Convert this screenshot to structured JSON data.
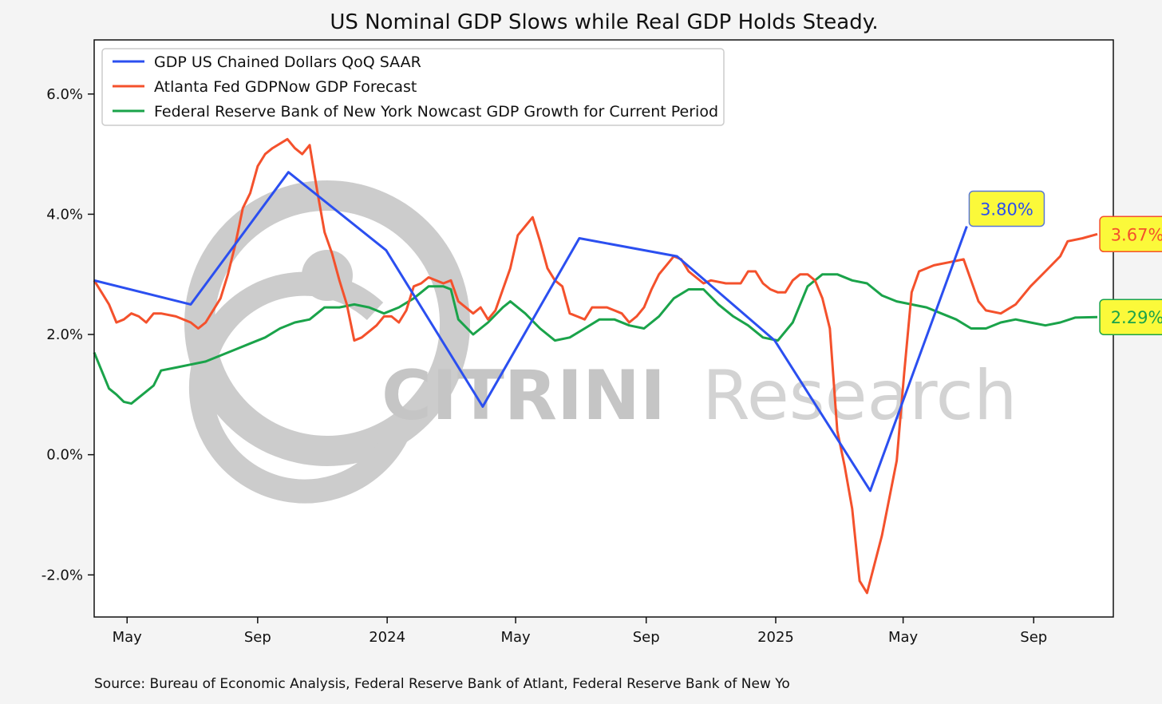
{
  "chart_data": {
    "type": "line",
    "title": "US Nominal GDP Slows while Real GDP Holds Steady.",
    "xlabel": "",
    "ylabel": "",
    "x_unit": "date",
    "xlim": [
      "2023-03-31",
      "2025-11-15"
    ],
    "ylim": [
      -2.7,
      6.9
    ],
    "y_ticks": [
      -2,
      0,
      2,
      4,
      6
    ],
    "y_tick_labels": [
      "-2.0%",
      "0.0%",
      "2.0%",
      "4.0%",
      "6.0%"
    ],
    "x_ticks": [
      "2023-05-01",
      "2023-09-01",
      "2024-01-01",
      "2024-05-01",
      "2024-09-01",
      "2025-01-01",
      "2025-05-01",
      "2025-09-01"
    ],
    "x_tick_labels": [
      "May",
      "Sep",
      "2024",
      "May",
      "Sep",
      "2025",
      "May",
      "Sep"
    ],
    "grid": false,
    "legend_position": "top-left",
    "source": "Source: Bureau of Economic Analysis, Federal Reserve Bank of Atlant, Federal Reserve Bank of New Yo",
    "watermark": {
      "brand": "CITRINI",
      "sub": "Research"
    },
    "series": [
      {
        "name": "GDP US Chained Dollars QoQ SAAR",
        "color": "#2b4ff0",
        "end_label": "3.80%",
        "end_label_color": "#2b4ff0",
        "end_label_border": "#5a78d6",
        "points": [
          [
            "2023-03-31",
            2.9
          ],
          [
            "2023-06-30",
            2.5
          ],
          [
            "2023-09-30",
            4.7
          ],
          [
            "2023-12-31",
            3.4
          ],
          [
            "2024-03-31",
            0.8
          ],
          [
            "2024-06-30",
            3.6
          ],
          [
            "2024-09-30",
            3.3
          ],
          [
            "2024-12-31",
            1.9
          ],
          [
            "2025-03-31",
            -0.6
          ],
          [
            "2025-06-30",
            3.8
          ]
        ]
      },
      {
        "name": "Atlanta Fed GDPNow GDP Forecast",
        "color": "#f4512c",
        "end_label": "3.67%",
        "end_label_color": "#f4512c",
        "end_label_border": "#f4512c",
        "points": [
          [
            "2023-03-31",
            2.9
          ],
          [
            "2023-04-07",
            2.7
          ],
          [
            "2023-04-14",
            2.5
          ],
          [
            "2023-04-21",
            2.2
          ],
          [
            "2023-04-28",
            2.25
          ],
          [
            "2023-05-05",
            2.35
          ],
          [
            "2023-05-12",
            2.3
          ],
          [
            "2023-05-19",
            2.2
          ],
          [
            "2023-05-26",
            2.35
          ],
          [
            "2023-06-02",
            2.35
          ],
          [
            "2023-06-16",
            2.3
          ],
          [
            "2023-06-30",
            2.2
          ],
          [
            "2023-07-07",
            2.1
          ],
          [
            "2023-07-14",
            2.2
          ],
          [
            "2023-07-28",
            2.6
          ],
          [
            "2023-08-04",
            3.0
          ],
          [
            "2023-08-11",
            3.5
          ],
          [
            "2023-08-18",
            4.1
          ],
          [
            "2023-08-25",
            4.35
          ],
          [
            "2023-09-01",
            4.8
          ],
          [
            "2023-09-08",
            5.0
          ],
          [
            "2023-09-15",
            5.1
          ],
          [
            "2023-09-29",
            5.25
          ],
          [
            "2023-10-06",
            5.1
          ],
          [
            "2023-10-13",
            5.0
          ],
          [
            "2023-10-20",
            5.15
          ],
          [
            "2023-10-27",
            4.4
          ],
          [
            "2023-11-03",
            3.7
          ],
          [
            "2023-11-10",
            3.35
          ],
          [
            "2023-11-17",
            2.9
          ],
          [
            "2023-11-24",
            2.5
          ],
          [
            "2023-12-01",
            1.9
          ],
          [
            "2023-12-08",
            1.95
          ],
          [
            "2023-12-15",
            2.05
          ],
          [
            "2023-12-22",
            2.15
          ],
          [
            "2023-12-29",
            2.3
          ],
          [
            "2024-01-05",
            2.3
          ],
          [
            "2024-01-12",
            2.2
          ],
          [
            "2024-01-19",
            2.4
          ],
          [
            "2024-01-26",
            2.8
          ],
          [
            "2024-02-02",
            2.85
          ],
          [
            "2024-02-09",
            2.95
          ],
          [
            "2024-02-16",
            2.9
          ],
          [
            "2024-02-23",
            2.85
          ],
          [
            "2024-03-01",
            2.9
          ],
          [
            "2024-03-08",
            2.55
          ],
          [
            "2024-03-15",
            2.45
          ],
          [
            "2024-03-22",
            2.35
          ],
          [
            "2024-03-29",
            2.45
          ],
          [
            "2024-04-05",
            2.25
          ],
          [
            "2024-04-12",
            2.4
          ],
          [
            "2024-04-19",
            2.75
          ],
          [
            "2024-04-26",
            3.1
          ],
          [
            "2024-05-03",
            3.65
          ],
          [
            "2024-05-10",
            3.8
          ],
          [
            "2024-05-17",
            3.95
          ],
          [
            "2024-05-24",
            3.55
          ],
          [
            "2024-05-31",
            3.1
          ],
          [
            "2024-06-07",
            2.9
          ],
          [
            "2024-06-14",
            2.8
          ],
          [
            "2024-06-21",
            2.35
          ],
          [
            "2024-06-28",
            2.3
          ],
          [
            "2024-07-05",
            2.25
          ],
          [
            "2024-07-12",
            2.45
          ],
          [
            "2024-07-19",
            2.45
          ],
          [
            "2024-07-26",
            2.45
          ],
          [
            "2024-08-02",
            2.4
          ],
          [
            "2024-08-09",
            2.35
          ],
          [
            "2024-08-16",
            2.2
          ],
          [
            "2024-08-23",
            2.3
          ],
          [
            "2024-08-30",
            2.45
          ],
          [
            "2024-09-06",
            2.75
          ],
          [
            "2024-09-13",
            3.0
          ],
          [
            "2024-09-20",
            3.15
          ],
          [
            "2024-09-27",
            3.3
          ],
          [
            "2024-10-04",
            3.25
          ],
          [
            "2024-10-11",
            3.05
          ],
          [
            "2024-10-18",
            2.95
          ],
          [
            "2024-10-25",
            2.85
          ],
          [
            "2024-11-01",
            2.9
          ],
          [
            "2024-11-15",
            2.85
          ],
          [
            "2024-11-29",
            2.85
          ],
          [
            "2024-12-06",
            3.05
          ],
          [
            "2024-12-13",
            3.05
          ],
          [
            "2024-12-20",
            2.85
          ],
          [
            "2024-12-27",
            2.75
          ],
          [
            "2025-01-03",
            2.7
          ],
          [
            "2025-01-10",
            2.7
          ],
          [
            "2025-01-17",
            2.9
          ],
          [
            "2025-01-24",
            3.0
          ],
          [
            "2025-01-31",
            3.0
          ],
          [
            "2025-02-07",
            2.9
          ],
          [
            "2025-02-14",
            2.6
          ],
          [
            "2025-02-21",
            2.1
          ],
          [
            "2025-02-28",
            0.4
          ],
          [
            "2025-03-07",
            -0.2
          ],
          [
            "2025-03-14",
            -0.9
          ],
          [
            "2025-03-21",
            -2.1
          ],
          [
            "2025-03-28",
            -2.3
          ],
          [
            "2025-04-11",
            -1.35
          ],
          [
            "2025-04-25",
            -0.1
          ],
          [
            "2025-05-02",
            1.35
          ],
          [
            "2025-05-09",
            2.7
          ],
          [
            "2025-05-16",
            3.05
          ],
          [
            "2025-05-30",
            3.15
          ],
          [
            "2025-06-13",
            3.2
          ],
          [
            "2025-06-27",
            3.25
          ],
          [
            "2025-07-11",
            2.55
          ],
          [
            "2025-07-18",
            2.4
          ],
          [
            "2025-08-01",
            2.35
          ],
          [
            "2025-08-15",
            2.5
          ],
          [
            "2025-08-29",
            2.8
          ],
          [
            "2025-09-12",
            3.05
          ],
          [
            "2025-09-26",
            3.3
          ],
          [
            "2025-10-03",
            3.55
          ],
          [
            "2025-10-17",
            3.6
          ],
          [
            "2025-10-31",
            3.67
          ]
        ]
      },
      {
        "name": "Federal Reserve Bank of New York Nowcast GDP Growth for Current Period",
        "color": "#1aa34a",
        "end_label": "2.29%",
        "end_label_color": "#1aa34a",
        "end_label_border": "#1aa34a",
        "points": [
          [
            "2023-03-31",
            1.7
          ],
          [
            "2023-04-07",
            1.4
          ],
          [
            "2023-04-14",
            1.1
          ],
          [
            "2023-04-21",
            1.0
          ],
          [
            "2023-04-28",
            0.88
          ],
          [
            "2023-05-05",
            0.85
          ],
          [
            "2023-05-12",
            0.95
          ],
          [
            "2023-05-19",
            1.05
          ],
          [
            "2023-05-26",
            1.15
          ],
          [
            "2023-06-02",
            1.4
          ],
          [
            "2023-06-16",
            1.45
          ],
          [
            "2023-06-30",
            1.5
          ],
          [
            "2023-07-14",
            1.55
          ],
          [
            "2023-07-28",
            1.65
          ],
          [
            "2023-08-11",
            1.75
          ],
          [
            "2023-08-25",
            1.85
          ],
          [
            "2023-09-08",
            1.95
          ],
          [
            "2023-09-22",
            2.1
          ],
          [
            "2023-10-06",
            2.2
          ],
          [
            "2023-10-20",
            2.25
          ],
          [
            "2023-11-03",
            2.45
          ],
          [
            "2023-11-17",
            2.45
          ],
          [
            "2023-12-01",
            2.5
          ],
          [
            "2023-12-15",
            2.45
          ],
          [
            "2023-12-29",
            2.35
          ],
          [
            "2024-01-12",
            2.45
          ],
          [
            "2024-01-26",
            2.6
          ],
          [
            "2024-02-09",
            2.8
          ],
          [
            "2024-02-23",
            2.8
          ],
          [
            "2024-03-01",
            2.75
          ],
          [
            "2024-03-08",
            2.25
          ],
          [
            "2024-03-22",
            2.0
          ],
          [
            "2024-04-05",
            2.2
          ],
          [
            "2024-04-19",
            2.45
          ],
          [
            "2024-04-26",
            2.55
          ],
          [
            "2024-05-10",
            2.35
          ],
          [
            "2024-05-24",
            2.1
          ],
          [
            "2024-06-07",
            1.9
          ],
          [
            "2024-06-21",
            1.95
          ],
          [
            "2024-07-05",
            2.1
          ],
          [
            "2024-07-19",
            2.25
          ],
          [
            "2024-08-02",
            2.25
          ],
          [
            "2024-08-16",
            2.15
          ],
          [
            "2024-08-30",
            2.1
          ],
          [
            "2024-09-13",
            2.3
          ],
          [
            "2024-09-27",
            2.6
          ],
          [
            "2024-10-11",
            2.75
          ],
          [
            "2024-10-25",
            2.75
          ],
          [
            "2024-11-08",
            2.5
          ],
          [
            "2024-11-22",
            2.3
          ],
          [
            "2024-12-06",
            2.15
          ],
          [
            "2024-12-20",
            1.95
          ],
          [
            "2025-01-03",
            1.9
          ],
          [
            "2025-01-17",
            2.2
          ],
          [
            "2025-01-31",
            2.8
          ],
          [
            "2025-02-14",
            3.0
          ],
          [
            "2025-02-28",
            3.0
          ],
          [
            "2025-03-14",
            2.9
          ],
          [
            "2025-03-28",
            2.85
          ],
          [
            "2025-04-11",
            2.65
          ],
          [
            "2025-04-25",
            2.55
          ],
          [
            "2025-05-09",
            2.5
          ],
          [
            "2025-05-23",
            2.45
          ],
          [
            "2025-06-06",
            2.35
          ],
          [
            "2025-06-20",
            2.25
          ],
          [
            "2025-07-04",
            2.1
          ],
          [
            "2025-07-18",
            2.1
          ],
          [
            "2025-08-01",
            2.2
          ],
          [
            "2025-08-15",
            2.25
          ],
          [
            "2025-08-29",
            2.2
          ],
          [
            "2025-09-12",
            2.15
          ],
          [
            "2025-09-26",
            2.2
          ],
          [
            "2025-10-10",
            2.28
          ],
          [
            "2025-10-31",
            2.29
          ]
        ]
      }
    ]
  }
}
